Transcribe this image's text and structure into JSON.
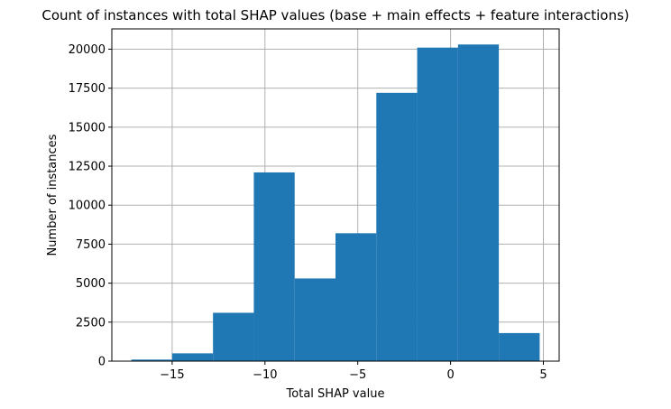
{
  "chart_data": {
    "type": "bar",
    "title": "Count of instances with total SHAP values (base + main effects + feature interactions)",
    "xlabel": "Total SHAP value",
    "ylabel": "Number of instances",
    "bins": [
      {
        "x0": -17.2,
        "x1": -15.0,
        "value": 100
      },
      {
        "x0": -15.0,
        "x1": -12.8,
        "value": 500
      },
      {
        "x0": -12.8,
        "x1": -10.6,
        "value": 3100
      },
      {
        "x0": -10.6,
        "x1": -8.4,
        "value": 12100
      },
      {
        "x0": -8.4,
        "x1": -6.2,
        "value": 5300
      },
      {
        "x0": -6.2,
        "x1": -4.0,
        "value": 8200
      },
      {
        "x0": -4.0,
        "x1": -1.8,
        "value": 17200
      },
      {
        "x0": -1.8,
        "x1": 0.4,
        "value": 20100
      },
      {
        "x0": 0.4,
        "x1": 2.6,
        "value": 20300
      },
      {
        "x0": 2.6,
        "x1": 4.8,
        "value": 1800
      }
    ],
    "xticks": [
      -15,
      -10,
      -5,
      0,
      5
    ],
    "xtick_labels": [
      "−15",
      "−10",
      "−5",
      "0",
      "5"
    ],
    "yticks": [
      0,
      2500,
      5000,
      7500,
      10000,
      12500,
      15000,
      17500,
      20000
    ],
    "ytick_labels": [
      "0",
      "2500",
      "5000",
      "7500",
      "10000",
      "12500",
      "15000",
      "17500",
      "20000"
    ],
    "xlim": [
      -18.25,
      5.85
    ],
    "ylim": [
      0,
      21300
    ],
    "grid": true,
    "bar_color": "#1f77b4",
    "grid_color": "#b0b0b0"
  }
}
